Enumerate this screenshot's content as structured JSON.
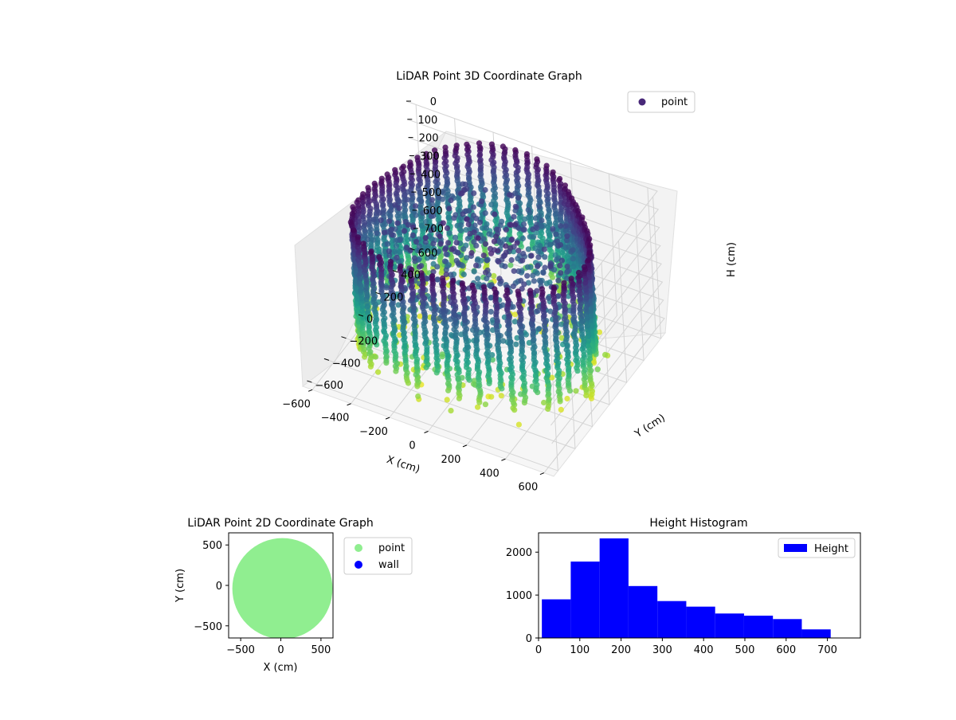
{
  "chart_data": [
    {
      "type": "scatter",
      "title": "LiDAR Point 3D Coordinate Graph",
      "xlabel": "X (cm)",
      "ylabel": "Y (cm)",
      "zlabel": "H (cm)",
      "xlim": [
        -650,
        650
      ],
      "ylim": [
        -650,
        650
      ],
      "zlim": [
        780,
        0
      ],
      "x_ticks": [
        "−600",
        "−400",
        "−200",
        "0",
        "200",
        "400",
        "600"
      ],
      "y_ticks": [
        "−600",
        "−400",
        "−200",
        "0",
        "200",
        "400",
        "600"
      ],
      "z_ticks": [
        "0",
        "100",
        "200",
        "300",
        "400",
        "500",
        "600",
        "700"
      ],
      "z_inverted": true,
      "colormap": "viridis",
      "wall_radius": 600,
      "grid": true,
      "legend": {
        "position": "top-right",
        "entries": [
          {
            "name": "point",
            "color": "#482878"
          }
        ]
      }
    },
    {
      "type": "scatter",
      "title": "LiDAR Point 2D Coordinate Graph",
      "xlabel": "X (cm)",
      "ylabel": "Y (cm)",
      "xlim": [
        -650,
        650
      ],
      "ylim": [
        -650,
        650
      ],
      "x_ticks": [
        -500,
        0,
        500
      ],
      "y_ticks": [
        500,
        0,
        -500
      ],
      "disc_radius": 600,
      "series": [
        {
          "name": "point",
          "color": "#90ee90"
        },
        {
          "name": "wall",
          "color": "#0000ff"
        }
      ],
      "legend": {
        "position": "outside-right"
      }
    },
    {
      "type": "bar",
      "title": "Height Histogram",
      "xlim": [
        0,
        780
      ],
      "ylim": [
        0,
        2450
      ],
      "x_ticks": [
        0,
        100,
        200,
        300,
        400,
        500,
        600,
        700
      ],
      "y_ticks": [
        0,
        1000,
        2000
      ],
      "bin_edges": [
        8,
        78,
        148,
        218,
        288,
        358,
        428,
        498,
        568,
        638,
        708
      ],
      "counts": [
        900,
        1780,
        2320,
        1210,
        860,
        730,
        570,
        520,
        440,
        200
      ],
      "color": "#0000ff",
      "legend": {
        "position": "top-right",
        "entries": [
          {
            "name": "Height",
            "color": "#0000ff"
          }
        ]
      }
    }
  ]
}
